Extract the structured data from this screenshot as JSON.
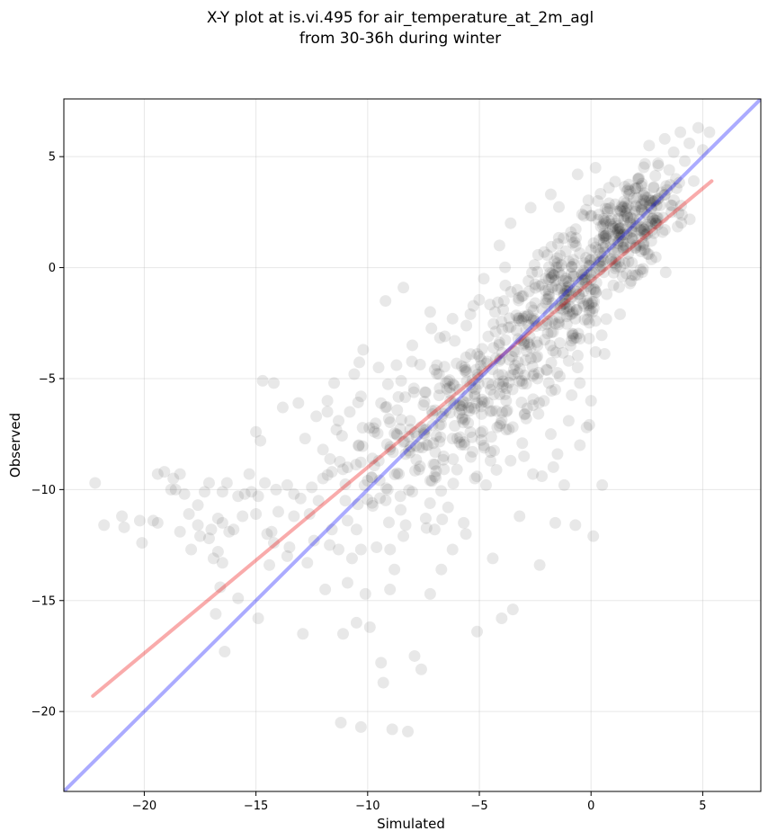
{
  "chart_data": {
    "type": "scatter",
    "title_line1": "X-Y plot at is.vi.495 for air_temperature_at_2m_agl",
    "title_line2": "from 30-36h during winter",
    "xlabel": "Simulated",
    "ylabel": "Observed",
    "xlim": [
      -23.6,
      7.6
    ],
    "ylim": [
      -23.6,
      7.6
    ],
    "xticks": [
      -20,
      -15,
      -10,
      -5,
      0,
      5
    ],
    "yticks": [
      -20,
      -15,
      -10,
      -5,
      0,
      5
    ],
    "xtick_labels": [
      "−20",
      "−15",
      "−10",
      "−5",
      "0",
      "5"
    ],
    "ytick_labels": [
      "−20",
      "−15",
      "−10",
      "−5",
      "0",
      "5"
    ],
    "grid": true,
    "point_color": "#000000",
    "series": [
      {
        "type": "scatter",
        "points": [
          [
            -22.2,
            -9.7
          ],
          [
            -21.8,
            -11.6
          ],
          [
            -21.0,
            -11.2
          ],
          [
            -20.9,
            -11.7
          ],
          [
            -20.2,
            -11.4
          ],
          [
            -20.1,
            -12.4
          ],
          [
            -19.6,
            -11.4
          ],
          [
            -19.4,
            -11.5
          ],
          [
            -19.4,
            -9.3
          ],
          [
            -19.1,
            -9.2
          ],
          [
            -18.8,
            -10.0
          ],
          [
            -18.7,
            -9.5
          ],
          [
            -18.4,
            -9.3
          ],
          [
            -18.4,
            -11.9
          ],
          [
            -18.2,
            -10.2
          ],
          [
            -18.0,
            -11.1
          ],
          [
            -17.9,
            -12.7
          ],
          [
            -17.6,
            -11.6
          ],
          [
            -17.5,
            -12.1
          ],
          [
            -17.3,
            -10.1
          ],
          [
            -17.1,
            -9.7
          ],
          [
            -17.1,
            -12.2
          ],
          [
            -17.0,
            -11.8
          ],
          [
            -16.9,
            -13.1
          ],
          [
            -16.8,
            -15.6
          ],
          [
            -16.7,
            -11.3
          ],
          [
            -16.7,
            -12.8
          ],
          [
            -16.6,
            -14.4
          ],
          [
            -16.5,
            -10.1
          ],
          [
            -16.5,
            -13.3
          ],
          [
            -16.4,
            -17.3
          ],
          [
            -16.3,
            -9.7
          ],
          [
            -16.2,
            -11.9
          ],
          [
            -16.0,
            -11.8
          ],
          [
            -15.8,
            -14.9
          ],
          [
            -15.6,
            -11.2
          ],
          [
            -15.5,
            -10.2
          ],
          [
            -15.3,
            -9.3
          ],
          [
            -15.2,
            -10.1
          ],
          [
            -15.0,
            -7.4
          ],
          [
            -14.9,
            -15.8
          ],
          [
            -14.9,
            -10.3
          ],
          [
            -14.8,
            -7.8
          ],
          [
            -14.7,
            -5.1
          ],
          [
            -14.6,
            -9.7
          ],
          [
            -14.5,
            -12.0
          ],
          [
            -14.4,
            -13.4
          ],
          [
            -14.3,
            -11.9
          ],
          [
            -14.2,
            -5.2
          ],
          [
            -14.0,
            -11.0
          ],
          [
            -13.8,
            -6.3
          ],
          [
            -13.6,
            -9.8
          ],
          [
            -13.5,
            -12.6
          ],
          [
            -13.3,
            -11.2
          ],
          [
            -13.1,
            -6.1
          ],
          [
            -13.0,
            -10.4
          ],
          [
            -12.9,
            -16.5
          ],
          [
            -12.7,
            -13.3
          ],
          [
            -12.6,
            -11.1
          ],
          [
            -12.5,
            -9.9
          ],
          [
            -12.3,
            -6.7
          ],
          [
            -12.2,
            -10.5
          ],
          [
            -12.0,
            -8.2
          ],
          [
            -11.9,
            -14.5
          ],
          [
            -11.8,
            -6.0
          ],
          [
            -11.7,
            -12.5
          ],
          [
            -11.6,
            -9.2
          ],
          [
            -11.5,
            -5.2
          ],
          [
            -11.4,
            -7.3
          ],
          [
            -11.3,
            -12.7
          ],
          [
            -11.2,
            -20.5
          ],
          [
            -11.1,
            -16.5
          ],
          [
            -11.0,
            -10.5
          ],
          [
            -10.9,
            -9.0
          ],
          [
            -10.8,
            -6.5
          ],
          [
            -10.7,
            -13.1
          ],
          [
            -10.6,
            -4.8
          ],
          [
            -10.5,
            -11.8
          ],
          [
            -10.4,
            -8.0
          ],
          [
            -10.3,
            -20.7
          ],
          [
            -10.2,
            -3.7
          ],
          [
            -10.1,
            -14.7
          ],
          [
            -10.0,
            -9.6
          ],
          [
            -9.9,
            -16.2
          ],
          [
            -9.8,
            -10.6
          ],
          [
            -9.7,
            -7.4
          ],
          [
            -9.6,
            -12.6
          ],
          [
            -9.5,
            -8.7
          ],
          [
            -9.4,
            -17.8
          ],
          [
            -9.3,
            -18.7
          ],
          [
            -9.2,
            -6.3
          ],
          [
            -9.1,
            -10.0
          ],
          [
            -9.0,
            -8.2
          ],
          [
            -8.9,
            -20.8
          ],
          [
            -8.8,
            -13.6
          ],
          [
            -8.7,
            -7.5
          ],
          [
            -8.6,
            -9.3
          ],
          [
            -8.5,
            -5.1
          ],
          [
            -8.4,
            -12.1
          ],
          [
            -8.3,
            -8.4
          ],
          [
            -8.2,
            -20.9
          ],
          [
            -8.1,
            -6.9
          ],
          [
            -8.0,
            -10.1
          ],
          [
            -7.9,
            -17.5
          ],
          [
            -7.8,
            -7.6
          ],
          [
            -7.7,
            -9.1
          ],
          [
            -7.6,
            -18.1
          ],
          [
            -7.5,
            -6.2
          ],
          [
            -7.4,
            -11.3
          ],
          [
            -7.3,
            -8.0
          ],
          [
            -7.2,
            -14.7
          ],
          [
            -7.1,
            -6.6
          ],
          [
            -7.0,
            -9.4
          ],
          [
            -6.9,
            -4.4
          ],
          [
            -6.8,
            -7.1
          ],
          [
            -6.7,
            -13.6
          ],
          [
            -6.6,
            -8.5
          ],
          [
            -6.5,
            -5.2
          ],
          [
            -6.4,
            -10.8
          ],
          [
            -6.3,
            -6.0
          ],
          [
            -6.2,
            -7.7
          ],
          [
            -6.1,
            -3.3
          ],
          [
            -6.0,
            -9.1
          ],
          [
            -5.9,
            -5.5
          ],
          [
            -5.8,
            -6.4
          ],
          [
            -5.7,
            -11.5
          ],
          [
            -5.6,
            -4.6
          ],
          [
            -5.5,
            -7.0
          ],
          [
            -5.4,
            -2.1
          ],
          [
            -5.3,
            -8.3
          ],
          [
            -5.2,
            -5.8
          ],
          [
            -5.1,
            -16.4
          ],
          [
            -5.0,
            -4.0
          ],
          [
            -4.9,
            -6.6
          ],
          [
            -4.8,
            -0.5
          ],
          [
            -4.7,
            -9.8
          ],
          [
            -4.6,
            -3.1
          ],
          [
            -4.5,
            -5.5
          ],
          [
            -4.4,
            -13.1
          ],
          [
            -4.3,
            -2.0
          ],
          [
            -4.2,
            -7.2
          ],
          [
            -4.1,
            -4.2
          ],
          [
            -4.0,
            -15.8
          ],
          [
            -3.9,
            -1.5
          ],
          [
            -3.8,
            -6.0
          ],
          [
            -3.7,
            -2.7
          ],
          [
            -3.6,
            -8.7
          ],
          [
            -3.5,
            -15.4
          ],
          [
            -3.4,
            -4.4
          ],
          [
            -3.3,
            -1.0
          ],
          [
            -3.2,
            -11.2
          ],
          [
            -3.1,
            -5.1
          ],
          [
            -3.0,
            -2.2
          ],
          [
            -2.9,
            -6.8
          ],
          [
            -2.8,
            -0.6
          ],
          [
            -2.7,
            -3.6
          ],
          [
            -2.6,
            -9.3
          ],
          [
            -2.5,
            -1.6
          ],
          [
            -2.4,
            -5.0
          ],
          [
            -2.3,
            -13.4
          ],
          [
            -2.2,
            -2.6
          ],
          [
            -2.1,
            0.7
          ],
          [
            -2.0,
            -4.6
          ],
          [
            -1.9,
            -1.0
          ],
          [
            -1.8,
            -7.5
          ],
          [
            -1.7,
            -2.9
          ],
          [
            -1.6,
            -11.5
          ],
          [
            -1.5,
            0.2
          ],
          [
            -1.4,
            -3.4
          ],
          [
            -1.3,
            -1.5
          ],
          [
            -1.2,
            -9.8
          ],
          [
            -1.1,
            -0.6
          ],
          [
            -1.0,
            -4.2
          ],
          [
            -0.9,
            1.6
          ],
          [
            -0.8,
            -2.0
          ],
          [
            -0.7,
            -11.6
          ],
          [
            -0.6,
            -0.9
          ],
          [
            -0.5,
            -3.2
          ],
          [
            -0.4,
            2.4
          ],
          [
            -0.3,
            -0.3
          ],
          [
            -0.2,
            -7.2
          ],
          [
            -0.1,
            -1.7
          ],
          [
            0.0,
            0.8
          ],
          [
            0.1,
            -12.1
          ],
          [
            0.2,
            -2.4
          ],
          [
            0.3,
            3.0
          ],
          [
            0.4,
            -0.1
          ],
          [
            0.5,
            -9.8
          ],
          [
            0.6,
            1.4
          ],
          [
            0.7,
            -1.2
          ],
          [
            0.8,
            3.6
          ],
          [
            0.9,
            0.4
          ],
          [
            1.0,
            -0.8
          ],
          [
            1.1,
            2.0
          ],
          [
            1.2,
            1.1
          ],
          [
            1.3,
            -2.1
          ],
          [
            1.4,
            2.7
          ],
          [
            1.5,
            0.2
          ],
          [
            1.6,
            1.5
          ],
          [
            1.7,
            3.3
          ],
          [
            1.8,
            -0.6
          ],
          [
            1.9,
            2.2
          ],
          [
            2.0,
            0.9
          ],
          [
            2.1,
            4.0
          ],
          [
            2.2,
            1.7
          ],
          [
            2.3,
            -0.2
          ],
          [
            2.4,
            3.0
          ],
          [
            2.5,
            2.4
          ],
          [
            2.6,
            5.5
          ],
          [
            2.7,
            1.2
          ],
          [
            2.8,
            3.6
          ],
          [
            2.9,
            2.0
          ],
          [
            3.0,
            4.7
          ],
          [
            3.1,
            2.8
          ],
          [
            3.2,
            1.6
          ],
          [
            3.3,
            5.8
          ],
          [
            3.4,
            3.5
          ],
          [
            3.5,
            4.4
          ],
          [
            3.6,
            2.5
          ],
          [
            3.7,
            5.2
          ],
          [
            3.8,
            4.0
          ],
          [
            4.0,
            6.1
          ],
          [
            4.2,
            4.8
          ],
          [
            4.4,
            5.6
          ],
          [
            4.6,
            3.9
          ],
          [
            4.8,
            6.3
          ],
          [
            5.0,
            5.3
          ],
          [
            5.3,
            6.1
          ],
          [
            0.2,
            4.5
          ],
          [
            -0.6,
            4.2
          ],
          [
            -1.8,
            3.3
          ],
          [
            -2.7,
            2.7
          ],
          [
            -3.6,
            2.0
          ],
          [
            -4.1,
            1.0
          ],
          [
            -8.4,
            -0.9
          ],
          [
            -9.2,
            -1.5
          ],
          [
            -8.0,
            -3.5
          ],
          [
            -7.2,
            -2.0
          ],
          [
            -6.2,
            -2.3
          ],
          [
            -7.0,
            -4.6
          ],
          [
            -10.3,
            -5.8
          ],
          [
            -11.3,
            -6.9
          ],
          [
            -12.0,
            -9.5
          ],
          [
            -12.8,
            -7.7
          ],
          [
            -13.3,
            -10.2
          ],
          [
            -14.1,
            -10.0
          ],
          [
            -15.8,
            -10.3
          ],
          [
            -16.5,
            -11.5
          ],
          [
            -17.6,
            -10.7
          ],
          [
            -18.6,
            -10.0
          ],
          [
            -15.0,
            -11.1
          ],
          [
            -14.2,
            -12.4
          ],
          [
            -13.6,
            -13.0
          ],
          [
            -12.4,
            -12.3
          ],
          [
            -11.6,
            -11.8
          ],
          [
            -10.9,
            -11.4
          ],
          [
            -10.3,
            -12.7
          ],
          [
            -10.9,
            -14.2
          ],
          [
            -10.5,
            -16.0
          ],
          [
            -9.0,
            -14.5
          ],
          [
            -8.3,
            -11.6
          ],
          [
            -7.0,
            -11.8
          ],
          [
            -6.2,
            -12.7
          ],
          [
            -5.6,
            -12.0
          ],
          [
            -5.2,
            -9.5
          ],
          [
            -4.5,
            -8.7
          ],
          [
            -3.8,
            -7.3
          ],
          [
            -3.0,
            -8.5
          ],
          [
            -2.2,
            -9.4
          ],
          [
            -1.5,
            -8.4
          ],
          [
            -1.0,
            -6.9
          ],
          [
            -0.5,
            -8.0
          ],
          [
            0.0,
            -6.0
          ],
          [
            -0.5,
            -5.2
          ],
          [
            -1.6,
            -5.5
          ],
          [
            -2.6,
            -6.2
          ],
          [
            -0.6,
            -4.5
          ],
          [
            0.2,
            -3.8
          ],
          [
            -0.8,
            -3.0
          ],
          [
            -1.4,
            -4.9
          ],
          [
            -2.4,
            -4.0
          ],
          [
            -3.0,
            -3.3
          ]
        ]
      },
      {
        "type": "dense-cloud",
        "clusters": [
          {
            "center": [
              -8.5,
              -8.5
            ],
            "sd": [
              1.6,
              1.6
            ],
            "count": 90
          },
          {
            "center": [
              -5.5,
              -6.0
            ],
            "sd": [
              1.4,
              1.5
            ],
            "count": 120
          },
          {
            "center": [
              -3.0,
              -3.5
            ],
            "sd": [
              1.3,
              1.4
            ],
            "count": 110
          },
          {
            "center": [
              -1.0,
              -1.2
            ],
            "sd": [
              1.0,
              1.2
            ],
            "count": 150
          },
          {
            "center": [
              1.2,
              1.3
            ],
            "sd": [
              0.9,
              0.9
            ],
            "count": 140
          },
          {
            "center": [
              2.5,
              2.8
            ],
            "sd": [
              0.9,
              1.0
            ],
            "count": 90
          }
        ]
      },
      {
        "type": "line",
        "role": "regression",
        "color": "#ee0000",
        "x": [
          -22.3,
          5.4
        ],
        "y": [
          -19.3,
          3.9
        ]
      },
      {
        "type": "line",
        "role": "identity",
        "color": "#0000ff",
        "x": [
          -23.6,
          7.6
        ],
        "y": [
          -23.6,
          7.6
        ]
      }
    ]
  }
}
